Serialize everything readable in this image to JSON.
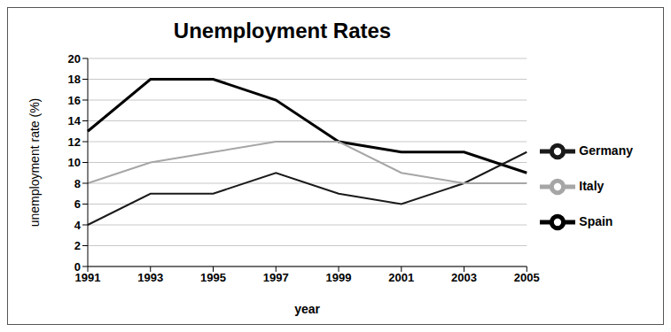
{
  "chart_data": {
    "type": "line",
    "title": "Unemployment Rates",
    "x_label": "year",
    "y_label": "unemployment rate (%)",
    "categories": [
      "1991",
      "1993",
      "1995",
      "1997",
      "1999",
      "2001",
      "2003",
      "2005"
    ],
    "series": [
      {
        "name": "Spain",
        "color": "#000000",
        "values": [
          13,
          18,
          18,
          16,
          12,
          11,
          11,
          9
        ]
      },
      {
        "name": "Germany",
        "color": "#1a1a1a",
        "values": [
          4,
          7,
          7,
          9,
          7,
          6,
          8,
          11
        ]
      },
      {
        "name": "Italy",
        "color": "#a6a6a6",
        "values": [
          8,
          10,
          11,
          12,
          12,
          9,
          8,
          8
        ]
      }
    ],
    "ylim": [
      0,
      20
    ],
    "yticks": [
      0,
      2,
      4,
      6,
      8,
      10,
      12,
      14,
      16,
      18,
      20
    ],
    "grid": true,
    "legend": "right"
  }
}
